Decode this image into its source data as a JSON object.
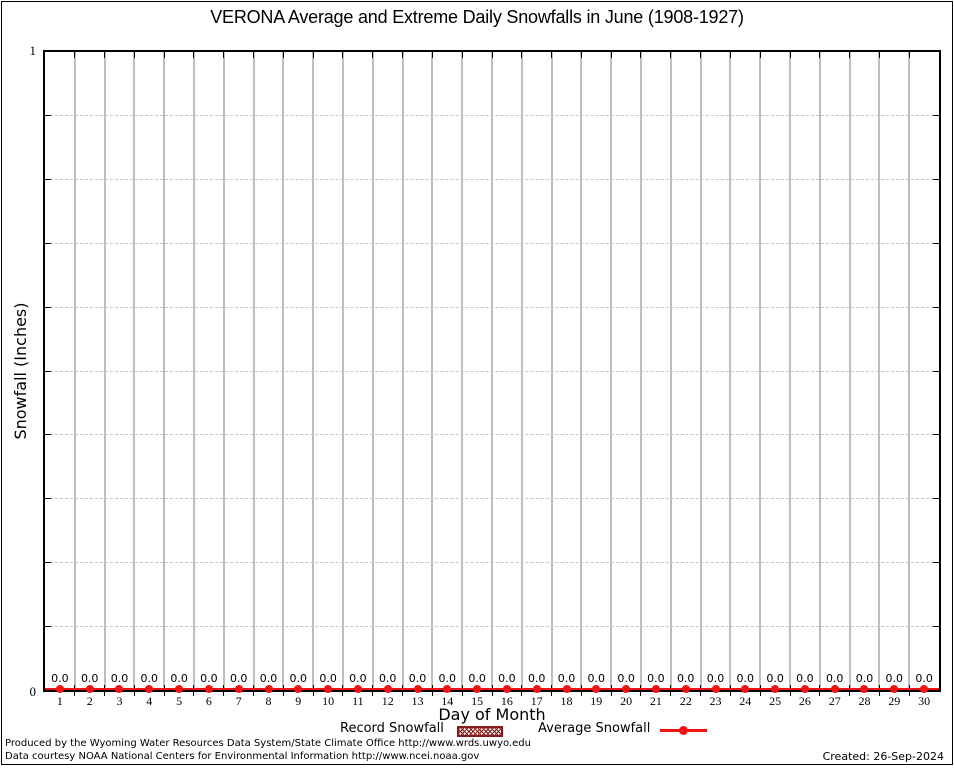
{
  "title": "VERONA Average and Extreme Daily Snowfalls in June (1908-1927)",
  "y_axis": {
    "label": "Snowfall (Inches)",
    "max_tick": "1",
    "min_tick": "0"
  },
  "x_axis": {
    "label": "Day of Month",
    "ticks": [
      "1",
      "2",
      "3",
      "4",
      "5",
      "6",
      "7",
      "8",
      "9",
      "10",
      "11",
      "12",
      "13",
      "14",
      "15",
      "16",
      "17",
      "18",
      "19",
      "20",
      "21",
      "22",
      "23",
      "24",
      "25",
      "26",
      "27",
      "28",
      "29",
      "30"
    ]
  },
  "value_labels": [
    "0.0",
    "0.0",
    "0.0",
    "0.0",
    "0.0",
    "0.0",
    "0.0",
    "0.0",
    "0.0",
    "0.0",
    "0.0",
    "0.0",
    "0.0",
    "0.0",
    "0.0",
    "0.0",
    "0.0",
    "0.0",
    "0.0",
    "0.0",
    "0.0",
    "0.0",
    "0.0",
    "0.0",
    "0.0",
    "0.0",
    "0.0",
    "0.0",
    "0.0",
    "0.0"
  ],
  "legend": {
    "record": {
      "label": "Record Snowfall"
    },
    "average": {
      "label": "Average Snowfall"
    }
  },
  "footer": {
    "line1": "Produced by the Wyoming Water Resources Data System/State Climate Office http://www.wrds.uwyo.edu",
    "line2": "Data courtesy NOAA National Centers for Environmental Information http://www.ncei.noaa.gov",
    "created": "Created: 26-Sep-2024"
  },
  "colors": {
    "average_line": "#ee1414",
    "record_hatch": "#8b1a1a",
    "gridline": "#bdbdbd",
    "dashed_gridline": "#c6c6c6"
  },
  "chart_data": {
    "type": "line",
    "title": "VERONA Average and Extreme Daily Snowfalls in June (1908-1927)",
    "xlabel": "Day of Month",
    "ylabel": "Snowfall (Inches)",
    "x": [
      1,
      2,
      3,
      4,
      5,
      6,
      7,
      8,
      9,
      10,
      11,
      12,
      13,
      14,
      15,
      16,
      17,
      18,
      19,
      20,
      21,
      22,
      23,
      24,
      25,
      26,
      27,
      28,
      29,
      30
    ],
    "xlim": [
      1,
      30
    ],
    "ylim": [
      0,
      1
    ],
    "y_tick_interval": 0.1,
    "grid": true,
    "legend_position": "bottom",
    "series": [
      {
        "name": "Record Snowfall",
        "type": "bar",
        "values": [
          0.0,
          0.0,
          0.0,
          0.0,
          0.0,
          0.0,
          0.0,
          0.0,
          0.0,
          0.0,
          0.0,
          0.0,
          0.0,
          0.0,
          0.0,
          0.0,
          0.0,
          0.0,
          0.0,
          0.0,
          0.0,
          0.0,
          0.0,
          0.0,
          0.0,
          0.0,
          0.0,
          0.0,
          0.0,
          0.0
        ]
      },
      {
        "name": "Average Snowfall",
        "type": "line",
        "values": [
          0.0,
          0.0,
          0.0,
          0.0,
          0.0,
          0.0,
          0.0,
          0.0,
          0.0,
          0.0,
          0.0,
          0.0,
          0.0,
          0.0,
          0.0,
          0.0,
          0.0,
          0.0,
          0.0,
          0.0,
          0.0,
          0.0,
          0.0,
          0.0,
          0.0,
          0.0,
          0.0,
          0.0,
          0.0,
          0.0
        ]
      }
    ],
    "annotations": "Each day is annotated with its value label 0.0 above the x-axis"
  }
}
